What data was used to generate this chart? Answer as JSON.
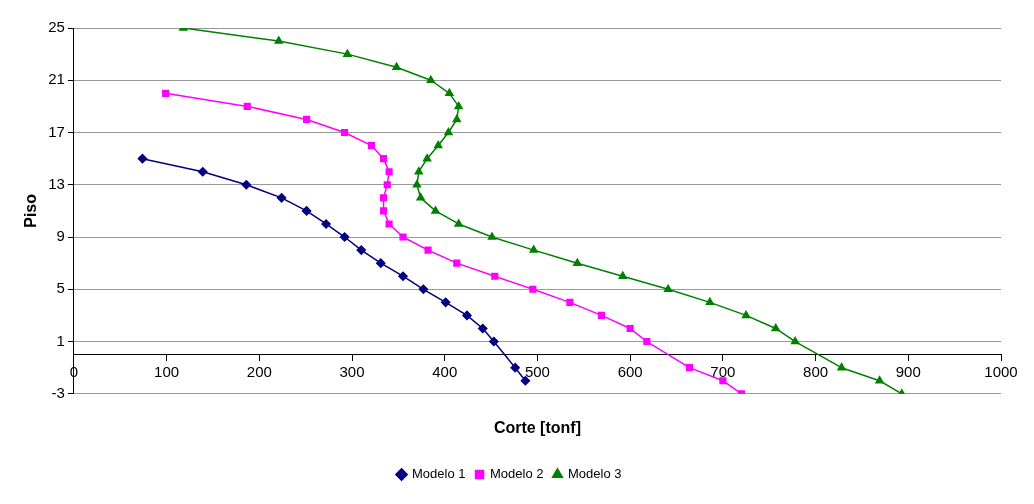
{
  "chart_data": {
    "type": "line",
    "xlabel": "Corte [tonf]",
    "ylabel": "Piso",
    "xlim": [
      0,
      1000
    ],
    "xticks": [
      0,
      100,
      200,
      300,
      400,
      500,
      600,
      700,
      800,
      900,
      1000
    ],
    "ylim": [
      -3,
      25
    ],
    "yticks": [
      -3,
      1,
      5,
      9,
      13,
      17,
      21,
      25
    ],
    "grid": "y",
    "legend": "bottom",
    "line_style": "solid",
    "series": [
      {
        "name": "Modelo 1",
        "color": "#000080",
        "marker": "diamond",
        "x": [
          74,
          139,
          186,
          224,
          251,
          272,
          292,
          310,
          331,
          355,
          377,
          401,
          424,
          441,
          453,
          476,
          487
        ],
        "values": [
          15,
          14,
          13,
          12,
          11,
          10,
          9,
          8,
          7,
          6,
          5,
          4,
          3,
          2,
          1,
          -1,
          -2
        ]
      },
      {
        "name": "Modelo 2",
        "color": "#ff00ff",
        "marker": "square",
        "x": [
          99,
          187,
          251,
          292,
          321,
          334,
          340,
          338,
          334,
          334,
          340,
          355,
          382,
          413,
          454,
          495,
          535,
          569,
          600,
          618,
          664,
          700,
          720
        ],
        "values": [
          20,
          19,
          18,
          17,
          16,
          15,
          14,
          13,
          12,
          11,
          10,
          9,
          8,
          7,
          6,
          5,
          4,
          3,
          2,
          1,
          -1,
          -2,
          -3
        ]
      },
      {
        "name": "Modelo 3",
        "color": "#008000",
        "marker": "triangle",
        "x": [
          118,
          221,
          295,
          348,
          385,
          405,
          415,
          413,
          404,
          393,
          381,
          372,
          370,
          374,
          390,
          415,
          451,
          496,
          543,
          592,
          641,
          686,
          725,
          757,
          778,
          828,
          869,
          893
        ],
        "values": [
          25,
          24,
          23,
          22,
          21,
          20,
          19,
          18,
          17,
          16,
          15,
          14,
          13,
          12,
          11,
          10,
          9,
          8,
          7,
          6,
          5,
          4,
          3,
          2,
          1,
          -1,
          -2,
          -3
        ]
      }
    ]
  }
}
